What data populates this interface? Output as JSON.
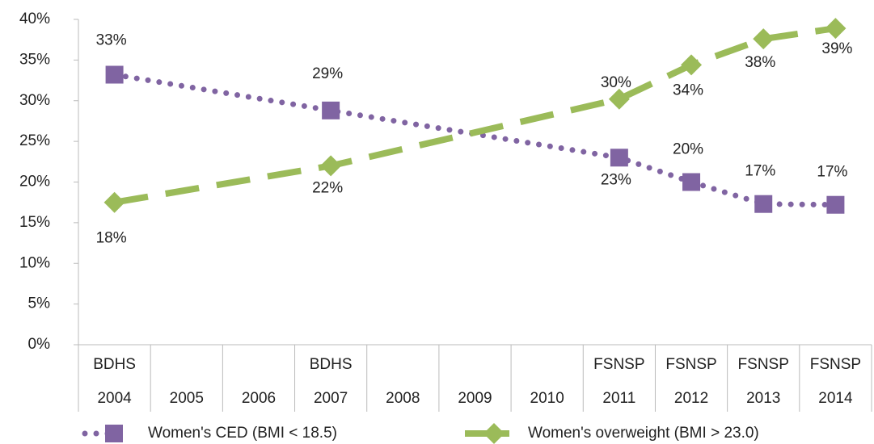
{
  "chart_data": {
    "type": "line",
    "categories": [
      "2004",
      "2005",
      "2006",
      "2007",
      "2008",
      "2009",
      "2010",
      "2011",
      "2012",
      "2013",
      "2014"
    ],
    "category_groups": [
      "BDHS",
      null,
      null,
      "BDHS",
      null,
      null,
      null,
      "FSNSP",
      "FSNSP",
      "FSNSP",
      "FSNSP"
    ],
    "x": [
      2004,
      2007,
      2011,
      2012,
      2013,
      2014
    ],
    "xlim": [
      2003.5,
      2014.5
    ],
    "series": [
      {
        "name": "Women's CED (BMI < 18.5)",
        "color": "#8064a2",
        "values": [
          33.2,
          28.8,
          23,
          20,
          17.3,
          17.2
        ],
        "value_labels": [
          "33%",
          "29%",
          "23%",
          "20%",
          "17%",
          "17%"
        ]
      },
      {
        "name": "Women's overweight (BMI > 23.0)",
        "color": "#9bbb59",
        "values": [
          17.5,
          22,
          30.2,
          34.4,
          37.6,
          38.9
        ],
        "value_labels": [
          "18%",
          "22%",
          "30%",
          "34%",
          "38%",
          "39%"
        ]
      }
    ],
    "ylim": [
      0,
      40
    ],
    "yticks": [
      {
        "value": 0,
        "label": "0%"
      },
      {
        "value": 5,
        "label": "5%"
      },
      {
        "value": 10,
        "label": "10%"
      },
      {
        "value": 15,
        "label": "15%"
      },
      {
        "value": 20,
        "label": "20%"
      },
      {
        "value": 25,
        "label": "25%"
      },
      {
        "value": 30,
        "label": "30%"
      },
      {
        "value": 35,
        "label": "35%"
      },
      {
        "value": 40,
        "label": "40%"
      }
    ],
    "grid": false,
    "legend": "bottom"
  }
}
